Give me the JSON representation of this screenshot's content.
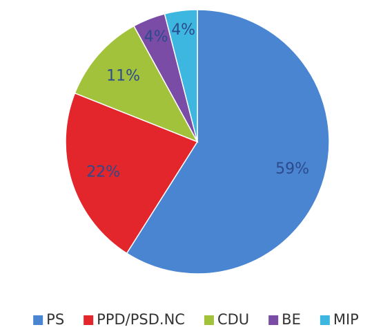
{
  "chart_data": {
    "type": "pie",
    "categories": [
      "PS",
      "PPD/PSD.NC",
      "CDU",
      "BE",
      "MIP"
    ],
    "values": [
      59,
      22,
      11,
      4,
      4
    ],
    "value_labels": [
      "59%",
      "22%",
      "11%",
      "4%",
      "4%"
    ],
    "colors": [
      "#4a85d2",
      "#e2262b",
      "#a3c23c",
      "#7a4ca6",
      "#3db7e0"
    ],
    "legend": "bottom"
  }
}
